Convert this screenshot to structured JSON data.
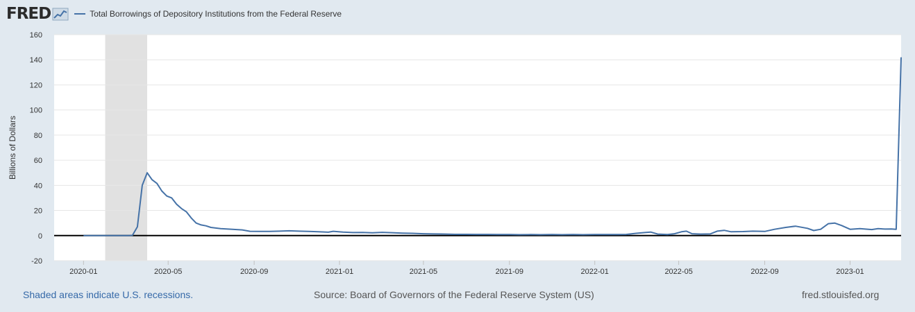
{
  "header": {
    "logo_text": "FRED",
    "series_legend_label": "Total Borrowings of Depository Institutions from the Federal Reserve",
    "series_color": "#4572a7"
  },
  "footer": {
    "recession_note": "Shaded areas indicate U.S. recessions.",
    "source": "Source: Board of Governors of the Federal Reserve System (US)",
    "site": "fred.stlouisfed.org"
  },
  "chart_data": {
    "type": "line",
    "title": "",
    "xlabel": "",
    "ylabel": "Billions of Dollars",
    "ylim": [
      -20,
      160
    ],
    "y_ticks": [
      -20,
      0,
      20,
      40,
      60,
      80,
      100,
      120,
      140,
      160
    ],
    "x_range": [
      "2019-11-20",
      "2023-03-15"
    ],
    "x_ticks": [
      "2020-01",
      "2020-05",
      "2020-09",
      "2021-01",
      "2021-05",
      "2021-09",
      "2022-01",
      "2022-05",
      "2022-09",
      "2023-01"
    ],
    "grid": true,
    "recession_shading": [
      {
        "start": "2020-02-01",
        "end": "2020-04-01"
      }
    ],
    "recession_color": "#e1e1e1",
    "zero_line": true,
    "series": [
      {
        "name": "Total Borrowings of Depository Institutions from the Federal Reserve",
        "points": [
          [
            "2020-01-01",
            0.0
          ],
          [
            "2020-02-01",
            0.0
          ],
          [
            "2020-03-05",
            0.0
          ],
          [
            "2020-03-11",
            0.2
          ],
          [
            "2020-03-18",
            7.0
          ],
          [
            "2020-03-25",
            40.0
          ],
          [
            "2020-04-01",
            50.0
          ],
          [
            "2020-04-08",
            44.5
          ],
          [
            "2020-04-15",
            41.5
          ],
          [
            "2020-04-22",
            35.5
          ],
          [
            "2020-04-29",
            31.5
          ],
          [
            "2020-05-06",
            30.0
          ],
          [
            "2020-05-13",
            25.0
          ],
          [
            "2020-05-20",
            21.5
          ],
          [
            "2020-05-27",
            19.0
          ],
          [
            "2020-06-03",
            14.0
          ],
          [
            "2020-06-10",
            10.0
          ],
          [
            "2020-06-17",
            8.5
          ],
          [
            "2020-06-24",
            7.8
          ],
          [
            "2020-07-01",
            6.5
          ],
          [
            "2020-07-15",
            5.5
          ],
          [
            "2020-08-01",
            5.0
          ],
          [
            "2020-08-15",
            4.5
          ],
          [
            "2020-08-26",
            3.4
          ],
          [
            "2020-09-09",
            3.3
          ],
          [
            "2020-09-23",
            3.3
          ],
          [
            "2020-10-07",
            3.5
          ],
          [
            "2020-10-21",
            3.8
          ],
          [
            "2020-11-04",
            3.5
          ],
          [
            "2020-11-18",
            3.3
          ],
          [
            "2020-12-02",
            3.0
          ],
          [
            "2020-12-16",
            2.7
          ],
          [
            "2020-12-23",
            3.4
          ],
          [
            "2021-01-06",
            2.8
          ],
          [
            "2021-01-20",
            2.4
          ],
          [
            "2021-02-03",
            2.5
          ],
          [
            "2021-02-17",
            2.2
          ],
          [
            "2021-03-03",
            2.6
          ],
          [
            "2021-03-17",
            2.3
          ],
          [
            "2021-04-01",
            2.0
          ],
          [
            "2021-04-15",
            1.8
          ],
          [
            "2021-05-01",
            1.5
          ],
          [
            "2021-05-15",
            1.3
          ],
          [
            "2021-06-01",
            1.2
          ],
          [
            "2021-06-15",
            1.0
          ],
          [
            "2021-07-01",
            1.0
          ],
          [
            "2021-07-15",
            0.9
          ],
          [
            "2021-08-01",
            0.9
          ],
          [
            "2021-08-15",
            0.8
          ],
          [
            "2021-09-01",
            0.8
          ],
          [
            "2021-09-15",
            0.7
          ],
          [
            "2021-10-01",
            0.8
          ],
          [
            "2021-10-15",
            0.7
          ],
          [
            "2021-11-01",
            0.8
          ],
          [
            "2021-11-15",
            0.7
          ],
          [
            "2021-12-01",
            0.8
          ],
          [
            "2021-12-15",
            0.7
          ],
          [
            "2022-01-01",
            0.8
          ],
          [
            "2022-01-15",
            0.8
          ],
          [
            "2022-02-01",
            0.8
          ],
          [
            "2022-02-15",
            0.9
          ],
          [
            "2022-03-01",
            1.8
          ],
          [
            "2022-03-15",
            2.5
          ],
          [
            "2022-03-22",
            2.8
          ],
          [
            "2022-04-01",
            1.2
          ],
          [
            "2022-04-15",
            0.8
          ],
          [
            "2022-04-25",
            1.5
          ],
          [
            "2022-05-05",
            3.0
          ],
          [
            "2022-05-12",
            3.5
          ],
          [
            "2022-05-20",
            1.5
          ],
          [
            "2022-06-01",
            1.2
          ],
          [
            "2022-06-15",
            1.3
          ],
          [
            "2022-06-25",
            3.5
          ],
          [
            "2022-07-05",
            4.2
          ],
          [
            "2022-07-15",
            3.0
          ],
          [
            "2022-08-01",
            3.2
          ],
          [
            "2022-08-15",
            3.5
          ],
          [
            "2022-09-01",
            3.3
          ],
          [
            "2022-09-15",
            5.0
          ],
          [
            "2022-10-01",
            6.5
          ],
          [
            "2022-10-15",
            7.5
          ],
          [
            "2022-11-01",
            5.8
          ],
          [
            "2022-11-10",
            4.0
          ],
          [
            "2022-11-20",
            5.0
          ],
          [
            "2022-12-01",
            9.5
          ],
          [
            "2022-12-10",
            10.0
          ],
          [
            "2022-12-20",
            8.0
          ],
          [
            "2023-01-01",
            5.0
          ],
          [
            "2023-01-15",
            5.5
          ],
          [
            "2023-02-01",
            4.8
          ],
          [
            "2023-02-10",
            5.5
          ],
          [
            "2023-02-20",
            5.2
          ],
          [
            "2023-03-01",
            5.3
          ],
          [
            "2023-03-08",
            5.0
          ],
          [
            "2023-03-15",
            142.0
          ]
        ]
      }
    ]
  }
}
